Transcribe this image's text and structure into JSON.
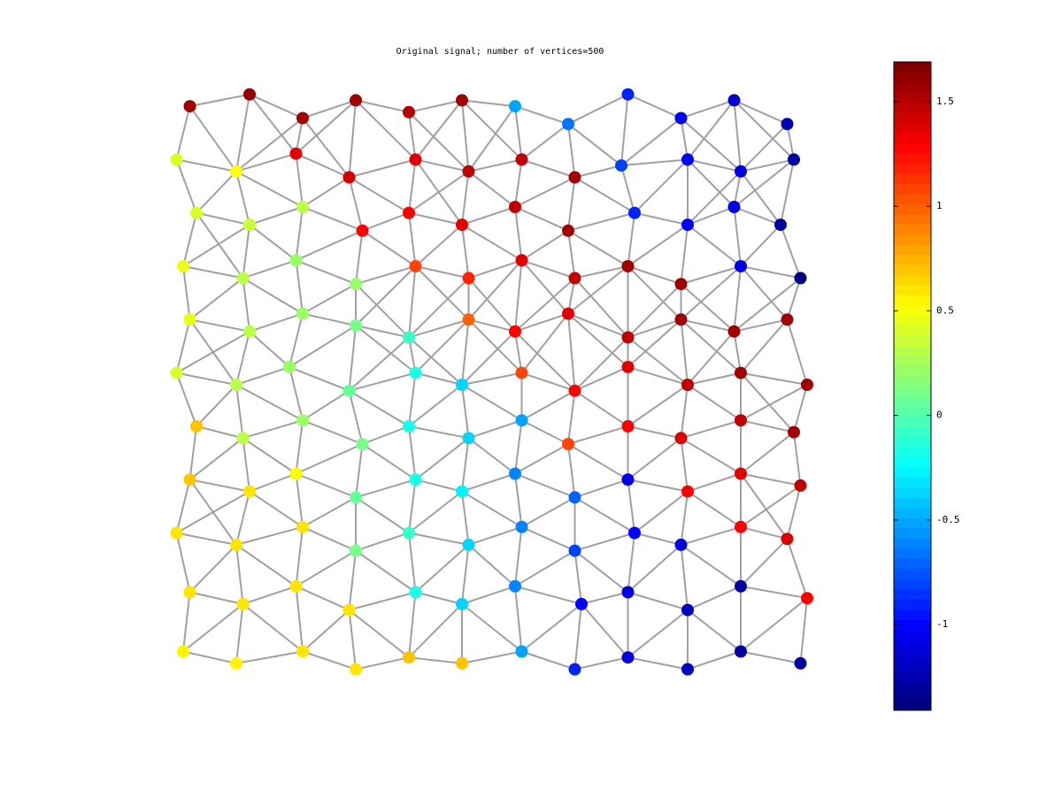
{
  "chart_data": {
    "type": "graph",
    "title": "Original signal; number of vertices=500",
    "colormap": "jet",
    "clim": [
      -1.41,
      1.69
    ],
    "colorbar_ticks": [
      -1,
      -0.5,
      0,
      0.5,
      1,
      1.5
    ],
    "edge_color": "#a0a0a0",
    "nodes": [
      [
        0.03,
        0.97,
        1.6
      ],
      [
        0.12,
        0.99,
        1.62
      ],
      [
        0.2,
        0.95,
        1.6
      ],
      [
        0.28,
        0.98,
        1.58
      ],
      [
        0.36,
        0.96,
        1.55
      ],
      [
        0.44,
        0.98,
        1.6
      ],
      [
        0.52,
        0.97,
        -0.5
      ],
      [
        0.6,
        0.94,
        -0.65
      ],
      [
        0.69,
        0.99,
        -0.9
      ],
      [
        0.77,
        0.95,
        -1.0
      ],
      [
        0.85,
        0.98,
        -1.15
      ],
      [
        0.93,
        0.94,
        -1.25
      ],
      [
        0.01,
        0.88,
        0.42
      ],
      [
        0.1,
        0.86,
        0.5
      ],
      [
        0.19,
        0.89,
        1.4
      ],
      [
        0.27,
        0.85,
        1.45
      ],
      [
        0.37,
        0.88,
        1.4
      ],
      [
        0.45,
        0.86,
        1.5
      ],
      [
        0.53,
        0.88,
        1.5
      ],
      [
        0.61,
        0.85,
        1.6
      ],
      [
        0.68,
        0.87,
        -0.8
      ],
      [
        0.78,
        0.88,
        -1.0
      ],
      [
        0.86,
        0.86,
        -1.1
      ],
      [
        0.94,
        0.88,
        -1.3
      ],
      [
        0.04,
        0.79,
        0.4
      ],
      [
        0.12,
        0.77,
        0.35
      ],
      [
        0.2,
        0.8,
        0.3
      ],
      [
        0.29,
        0.76,
        1.3
      ],
      [
        0.36,
        0.79,
        1.3
      ],
      [
        0.44,
        0.77,
        1.4
      ],
      [
        0.52,
        0.8,
        1.5
      ],
      [
        0.6,
        0.76,
        1.6
      ],
      [
        0.7,
        0.79,
        -0.9
      ],
      [
        0.78,
        0.77,
        -1.0
      ],
      [
        0.85,
        0.8,
        -1.1
      ],
      [
        0.92,
        0.77,
        -1.3
      ],
      [
        0.02,
        0.7,
        0.45
      ],
      [
        0.11,
        0.68,
        0.3
      ],
      [
        0.19,
        0.71,
        0.2
      ],
      [
        0.28,
        0.67,
        0.2
      ],
      [
        0.37,
        0.7,
        1.1
      ],
      [
        0.45,
        0.68,
        1.2
      ],
      [
        0.53,
        0.71,
        1.4
      ],
      [
        0.61,
        0.68,
        1.5
      ],
      [
        0.69,
        0.7,
        1.6
      ],
      [
        0.77,
        0.67,
        1.6
      ],
      [
        0.86,
        0.7,
        -1.1
      ],
      [
        0.95,
        0.68,
        -1.4
      ],
      [
        0.03,
        0.61,
        0.45
      ],
      [
        0.12,
        0.59,
        0.3
      ],
      [
        0.2,
        0.62,
        0.2
      ],
      [
        0.28,
        0.6,
        0.1
      ],
      [
        0.36,
        0.58,
        -0.1
      ],
      [
        0.45,
        0.61,
        1.0
      ],
      [
        0.52,
        0.59,
        1.3
      ],
      [
        0.6,
        0.62,
        1.4
      ],
      [
        0.69,
        0.58,
        1.5
      ],
      [
        0.77,
        0.61,
        1.6
      ],
      [
        0.85,
        0.59,
        1.6
      ],
      [
        0.93,
        0.61,
        1.6
      ],
      [
        0.01,
        0.52,
        0.4
      ],
      [
        0.1,
        0.5,
        0.3
      ],
      [
        0.18,
        0.53,
        0.2
      ],
      [
        0.27,
        0.49,
        0.05
      ],
      [
        0.37,
        0.52,
        -0.2
      ],
      [
        0.44,
        0.5,
        -0.4
      ],
      [
        0.53,
        0.52,
        1.1
      ],
      [
        0.61,
        0.49,
        1.3
      ],
      [
        0.69,
        0.53,
        1.4
      ],
      [
        0.78,
        0.5,
        1.5
      ],
      [
        0.86,
        0.52,
        1.6
      ],
      [
        0.96,
        0.5,
        1.6
      ],
      [
        0.04,
        0.43,
        0.7
      ],
      [
        0.11,
        0.41,
        0.3
      ],
      [
        0.2,
        0.44,
        0.2
      ],
      [
        0.29,
        0.4,
        0.1
      ],
      [
        0.36,
        0.43,
        -0.2
      ],
      [
        0.45,
        0.41,
        -0.4
      ],
      [
        0.53,
        0.44,
        -0.5
      ],
      [
        0.6,
        0.4,
        1.1
      ],
      [
        0.69,
        0.43,
        1.3
      ],
      [
        0.77,
        0.41,
        1.4
      ],
      [
        0.86,
        0.44,
        1.5
      ],
      [
        0.94,
        0.42,
        1.6
      ],
      [
        0.03,
        0.34,
        0.7
      ],
      [
        0.12,
        0.32,
        0.6
      ],
      [
        0.19,
        0.35,
        0.5
      ],
      [
        0.28,
        0.31,
        0.05
      ],
      [
        0.37,
        0.34,
        -0.2
      ],
      [
        0.44,
        0.32,
        -0.3
      ],
      [
        0.52,
        0.35,
        -0.6
      ],
      [
        0.61,
        0.31,
        -0.7
      ],
      [
        0.69,
        0.34,
        -1.1
      ],
      [
        0.78,
        0.32,
        1.3
      ],
      [
        0.86,
        0.35,
        1.4
      ],
      [
        0.95,
        0.33,
        1.5
      ],
      [
        0.01,
        0.25,
        0.6
      ],
      [
        0.1,
        0.23,
        0.6
      ],
      [
        0.2,
        0.26,
        0.6
      ],
      [
        0.28,
        0.22,
        0.1
      ],
      [
        0.36,
        0.25,
        -0.1
      ],
      [
        0.45,
        0.23,
        -0.4
      ],
      [
        0.53,
        0.26,
        -0.6
      ],
      [
        0.61,
        0.22,
        -0.8
      ],
      [
        0.7,
        0.25,
        -1.0
      ],
      [
        0.77,
        0.23,
        -1.1
      ],
      [
        0.86,
        0.26,
        1.3
      ],
      [
        0.93,
        0.24,
        1.4
      ],
      [
        0.03,
        0.15,
        0.6
      ],
      [
        0.11,
        0.13,
        0.6
      ],
      [
        0.19,
        0.16,
        0.6
      ],
      [
        0.27,
        0.12,
        0.6
      ],
      [
        0.37,
        0.15,
        -0.2
      ],
      [
        0.44,
        0.13,
        -0.4
      ],
      [
        0.52,
        0.16,
        -0.6
      ],
      [
        0.62,
        0.13,
        -1.0
      ],
      [
        0.69,
        0.15,
        -1.1
      ],
      [
        0.78,
        0.12,
        -1.2
      ],
      [
        0.86,
        0.16,
        -1.3
      ],
      [
        0.96,
        0.14,
        1.3
      ],
      [
        0.02,
        0.05,
        0.55
      ],
      [
        0.1,
        0.03,
        0.55
      ],
      [
        0.2,
        0.05,
        0.6
      ],
      [
        0.28,
        0.02,
        0.6
      ],
      [
        0.36,
        0.04,
        0.7
      ],
      [
        0.44,
        0.03,
        0.7
      ],
      [
        0.53,
        0.05,
        -0.5
      ],
      [
        0.61,
        0.02,
        -0.9
      ],
      [
        0.69,
        0.04,
        -1.1
      ],
      [
        0.78,
        0.02,
        -1.2
      ],
      [
        0.86,
        0.05,
        -1.3
      ],
      [
        0.95,
        0.03,
        -1.3
      ]
    ]
  }
}
